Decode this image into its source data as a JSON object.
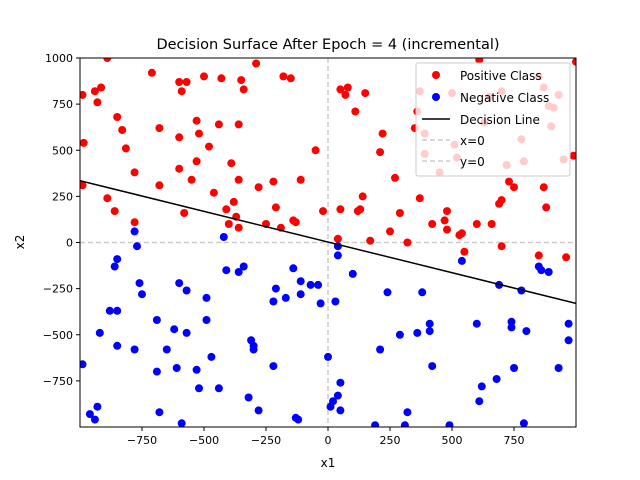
{
  "chart_data": {
    "type": "scatter",
    "title": "Decision Surface After Epoch = 4 (incremental)",
    "xlabel": "x1",
    "ylabel": "x2",
    "xlim": [
      -1000,
      1000
    ],
    "ylim": [
      -1000,
      1000
    ],
    "xticks": [
      -750,
      -500,
      -250,
      0,
      250,
      500,
      750
    ],
    "yticks": [
      -750,
      -500,
      -250,
      0,
      250,
      500,
      750,
      1000
    ],
    "xtick_labels": [
      "−750",
      "−500",
      "−250",
      "0",
      "250",
      "500",
      "750"
    ],
    "ytick_labels": [
      "−750",
      "−500",
      "−250",
      "0",
      "250",
      "500",
      "750",
      "1000"
    ],
    "grid": false,
    "legend_position": "top-right",
    "legend": {
      "positive": "Positive Class",
      "negative": "Negative Class",
      "line": "Decision Line",
      "x0": "x=0",
      "y0": "y=0"
    },
    "colors": {
      "positive": "#ff0000",
      "negative": "#0000ff",
      "decision_line": "#000000",
      "axis_lines": "#cccccc"
    },
    "decision_line": {
      "x": [
        -1000,
        1000
      ],
      "y": [
        335,
        -330
      ]
    },
    "x_zero_line": {
      "x": 0
    },
    "y_zero_line": {
      "y": 0
    },
    "series": [
      {
        "name": "Positive Class",
        "points": [
          [
            -990,
            800
          ],
          [
            -940,
            820
          ],
          [
            -930,
            760
          ],
          [
            -915,
            840
          ],
          [
            -890,
            1000
          ],
          [
            -850,
            680
          ],
          [
            -830,
            610
          ],
          [
            -815,
            510
          ],
          [
            -780,
            380
          ],
          [
            -780,
            110
          ],
          [
            -860,
            170
          ],
          [
            -890,
            240
          ],
          [
            -990,
            310
          ],
          [
            -985,
            540
          ],
          [
            -710,
            920
          ],
          [
            -680,
            620
          ],
          [
            -680,
            310
          ],
          [
            -600,
            870
          ],
          [
            -590,
            820
          ],
          [
            -570,
            870
          ],
          [
            -600,
            570
          ],
          [
            -600,
            400
          ],
          [
            -580,
            160
          ],
          [
            -550,
            340
          ],
          [
            -530,
            440
          ],
          [
            -520,
            590
          ],
          [
            -530,
            660
          ],
          [
            -500,
            900
          ],
          [
            -480,
            520
          ],
          [
            -460,
            270
          ],
          [
            -440,
            640
          ],
          [
            -430,
            890
          ],
          [
            -410,
            180
          ],
          [
            -400,
            100
          ],
          [
            -390,
            430
          ],
          [
            -380,
            220
          ],
          [
            -370,
            140
          ],
          [
            -360,
            80
          ],
          [
            -360,
            340
          ],
          [
            -360,
            640
          ],
          [
            -350,
            880
          ],
          [
            -340,
            830
          ],
          [
            -290,
            970
          ],
          [
            -280,
            300
          ],
          [
            -250,
            100
          ],
          [
            -220,
            330
          ],
          [
            -210,
            190
          ],
          [
            -190,
            80
          ],
          [
            -180,
            900
          ],
          [
            -150,
            890
          ],
          [
            -140,
            120
          ],
          [
            -130,
            110
          ],
          [
            -110,
            340
          ],
          [
            -50,
            500
          ],
          [
            -20,
            170
          ],
          [
            40,
            20
          ],
          [
            50,
            180
          ],
          [
            50,
            830
          ],
          [
            70,
            800
          ],
          [
            80,
            840
          ],
          [
            110,
            710
          ],
          [
            120,
            170
          ],
          [
            130,
            180
          ],
          [
            140,
            250
          ],
          [
            150,
            810
          ],
          [
            170,
            10
          ],
          [
            210,
            490
          ],
          [
            220,
            590
          ],
          [
            250,
            60
          ],
          [
            270,
            350
          ],
          [
            290,
            160
          ],
          [
            320,
            0
          ],
          [
            350,
            620
          ],
          [
            360,
            710
          ],
          [
            370,
            820
          ],
          [
            370,
            240
          ],
          [
            390,
            480
          ],
          [
            390,
            590
          ],
          [
            420,
            100
          ],
          [
            450,
            380
          ],
          [
            470,
            120
          ],
          [
            480,
            70
          ],
          [
            480,
            170
          ],
          [
            500,
            810
          ],
          [
            510,
            530
          ],
          [
            520,
            460
          ],
          [
            530,
            40
          ],
          [
            540,
            50
          ],
          [
            550,
            -50
          ],
          [
            600,
            100
          ],
          [
            610,
            990
          ],
          [
            630,
            650
          ],
          [
            660,
            100
          ],
          [
            690,
            210
          ],
          [
            700,
            -20
          ],
          [
            700,
            230
          ],
          [
            720,
            420
          ],
          [
            730,
            330
          ],
          [
            750,
            300
          ],
          [
            780,
            560
          ],
          [
            790,
            440
          ],
          [
            850,
            -70
          ],
          [
            870,
            840
          ],
          [
            870,
            300
          ],
          [
            880,
            190
          ],
          [
            890,
            740
          ],
          [
            900,
            630
          ],
          [
            910,
            730
          ],
          [
            950,
            450
          ],
          [
            960,
            -80
          ],
          [
            990,
            470
          ],
          [
            1000,
            980
          ],
          [
            930,
            800
          ],
          [
            850,
            900
          ],
          [
            700,
            820
          ],
          [
            650,
            790
          ]
        ]
      },
      {
        "name": "Negative Class",
        "points": [
          [
            -990,
            -660
          ],
          [
            -960,
            -930
          ],
          [
            -940,
            -960
          ],
          [
            -930,
            -890
          ],
          [
            -920,
            -490
          ],
          [
            -880,
            -370
          ],
          [
            -860,
            -130
          ],
          [
            -850,
            -90
          ],
          [
            -850,
            -370
          ],
          [
            -850,
            -560
          ],
          [
            -780,
            60
          ],
          [
            -780,
            -580
          ],
          [
            -770,
            -20
          ],
          [
            -760,
            -220
          ],
          [
            -750,
            -280
          ],
          [
            -690,
            -420
          ],
          [
            -690,
            -700
          ],
          [
            -680,
            -920
          ],
          [
            -650,
            -580
          ],
          [
            -620,
            -470
          ],
          [
            -610,
            -680
          ],
          [
            -600,
            -220
          ],
          [
            -590,
            -980
          ],
          [
            -570,
            -490
          ],
          [
            -570,
            -260
          ],
          [
            -530,
            -690
          ],
          [
            -520,
            -790
          ],
          [
            -490,
            -420
          ],
          [
            -490,
            -300
          ],
          [
            -470,
            -620
          ],
          [
            -440,
            -790
          ],
          [
            -420,
            30
          ],
          [
            -410,
            -150
          ],
          [
            -360,
            -160
          ],
          [
            -340,
            -130
          ],
          [
            -320,
            -840
          ],
          [
            -310,
            -530
          ],
          [
            -300,
            -560
          ],
          [
            -300,
            -580
          ],
          [
            -280,
            -910
          ],
          [
            -220,
            -670
          ],
          [
            -220,
            -320
          ],
          [
            -210,
            -250
          ],
          [
            -170,
            -300
          ],
          [
            -140,
            -140
          ],
          [
            -130,
            -950
          ],
          [
            -120,
            -960
          ],
          [
            -110,
            -280
          ],
          [
            -110,
            -210
          ],
          [
            -70,
            -230
          ],
          [
            -40,
            -230
          ],
          [
            -30,
            -330
          ],
          [
            0,
            -620
          ],
          [
            10,
            -890
          ],
          [
            20,
            -860
          ],
          [
            30,
            -320
          ],
          [
            40,
            -20
          ],
          [
            40,
            -70
          ],
          [
            40,
            -830
          ],
          [
            50,
            -760
          ],
          [
            50,
            -910
          ],
          [
            100,
            -170
          ],
          [
            190,
            -990
          ],
          [
            210,
            -580
          ],
          [
            240,
            -270
          ],
          [
            290,
            -500
          ],
          [
            310,
            -990
          ],
          [
            320,
            -920
          ],
          [
            360,
            -490
          ],
          [
            380,
            -270
          ],
          [
            410,
            -440
          ],
          [
            410,
            -480
          ],
          [
            420,
            -670
          ],
          [
            490,
            -990
          ],
          [
            540,
            -100
          ],
          [
            600,
            -440
          ],
          [
            610,
            -860
          ],
          [
            620,
            -780
          ],
          [
            680,
            -740
          ],
          [
            690,
            -230
          ],
          [
            740,
            -430
          ],
          [
            740,
            -460
          ],
          [
            750,
            -680
          ],
          [
            780,
            -260
          ],
          [
            790,
            -980
          ],
          [
            800,
            -480
          ],
          [
            850,
            -130
          ],
          [
            860,
            -150
          ],
          [
            890,
            -160
          ],
          [
            930,
            -680
          ],
          [
            970,
            -440
          ],
          [
            970,
            -530
          ]
        ]
      }
    ]
  }
}
